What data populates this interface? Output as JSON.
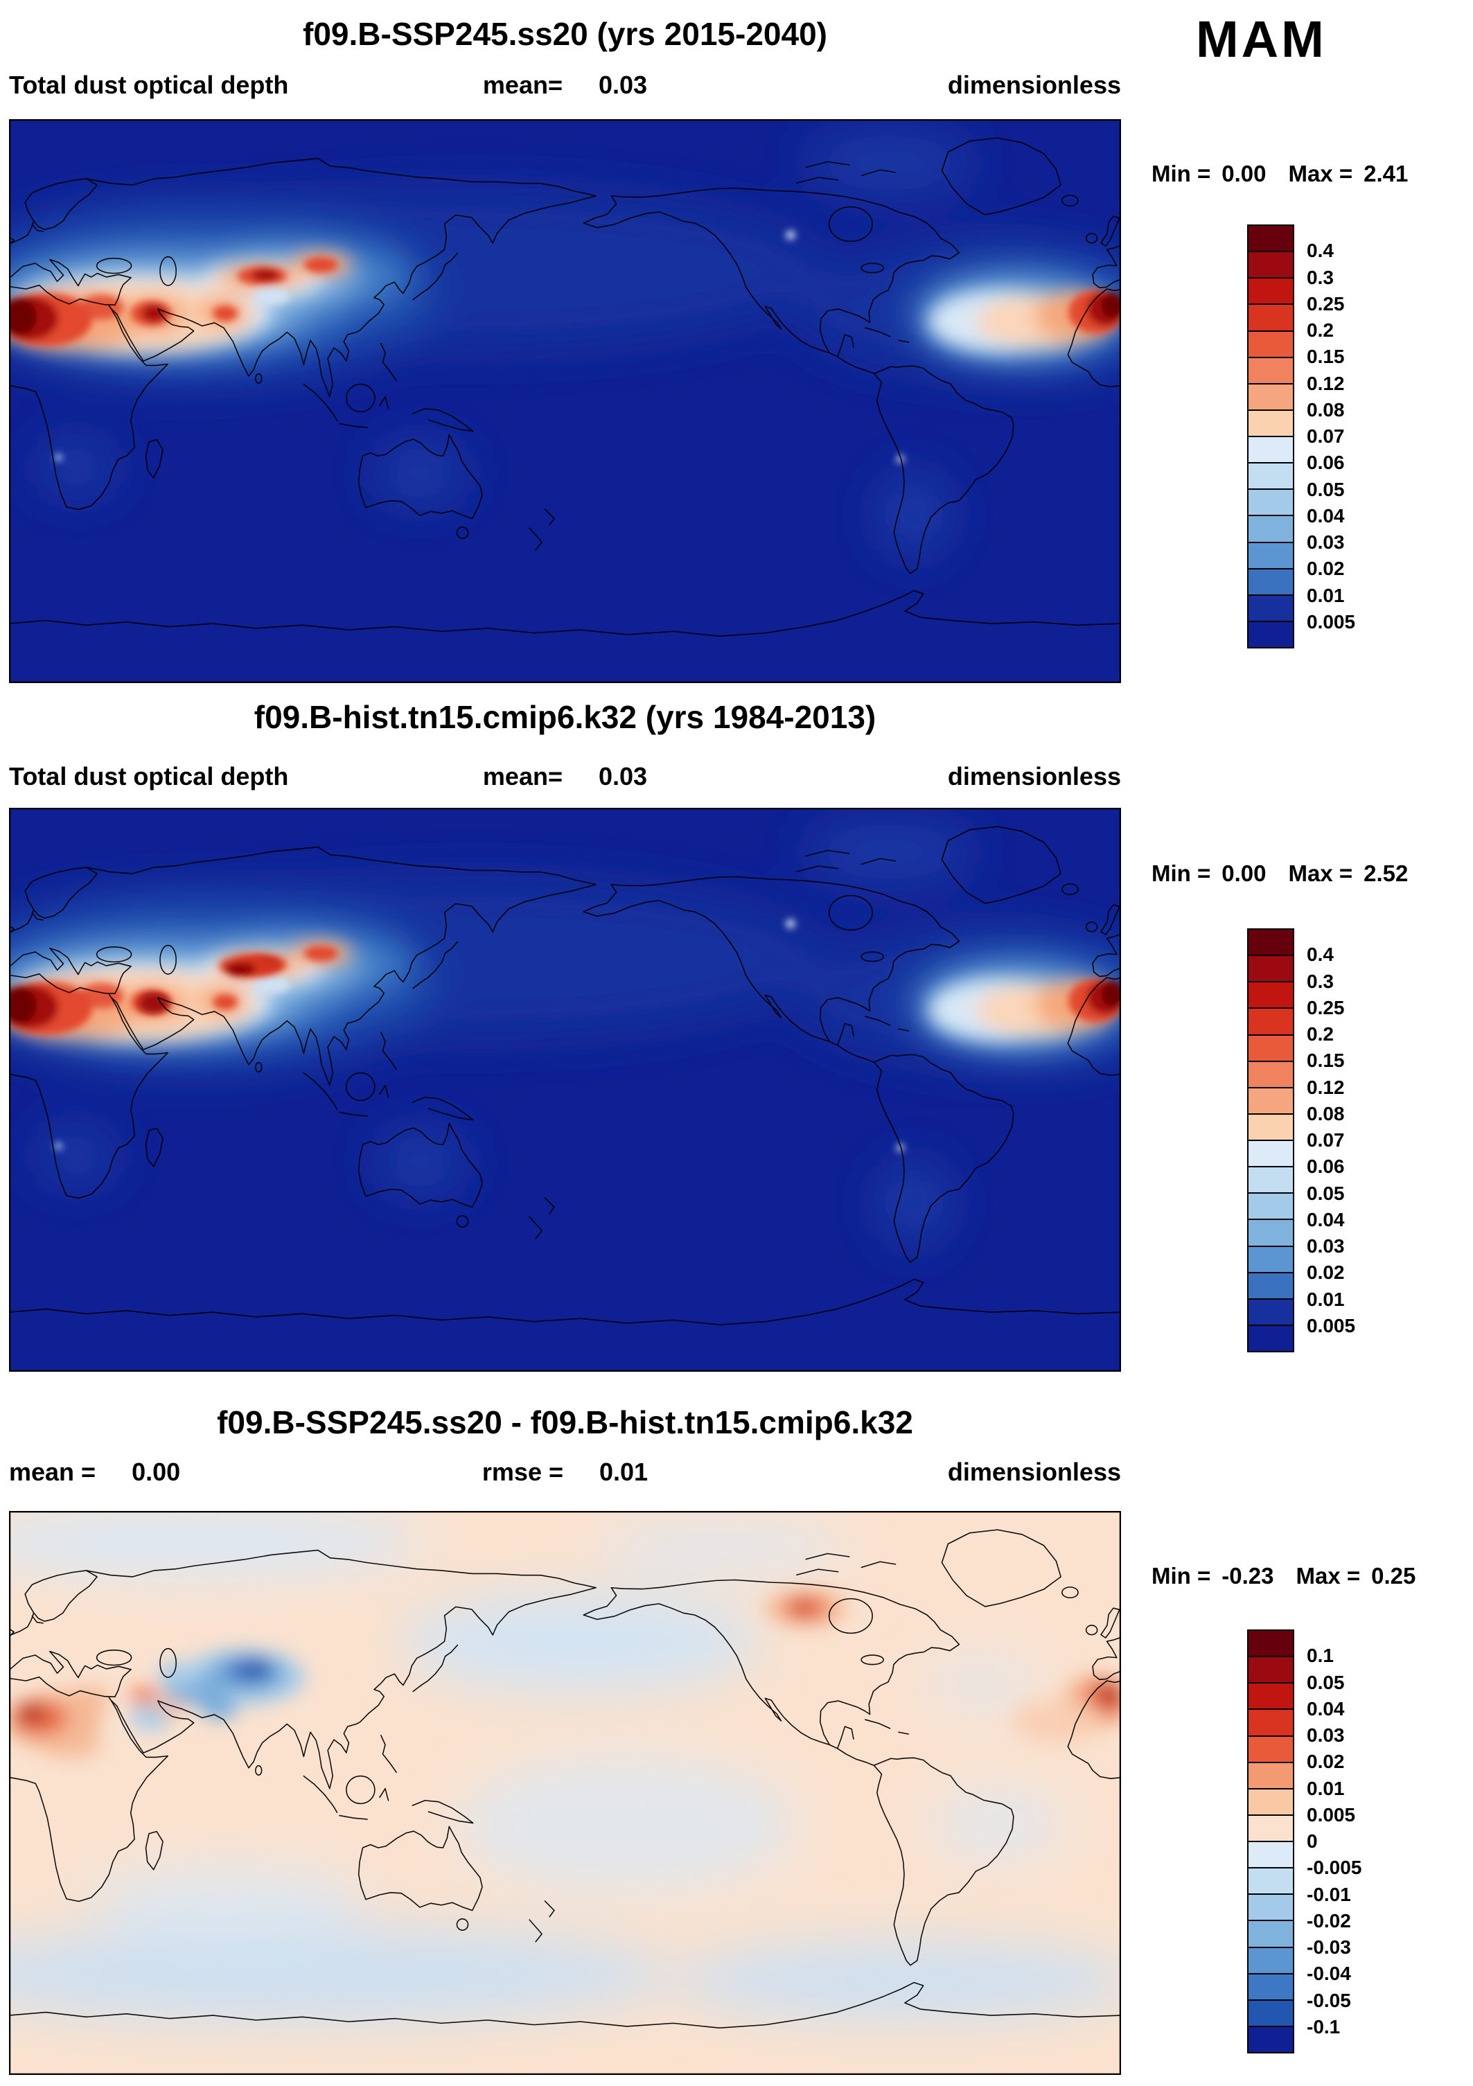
{
  "season": "MAM",
  "colors": {
    "ocean": "#0e2093",
    "diff_background": "#fae2cf",
    "coastline": "#000000"
  },
  "panels": [
    {
      "title": "f09.B-SSP245.ss20 (yrs 2015-2040)",
      "stats": {
        "left_label": "Total dust optical depth",
        "left_value": "",
        "center_label": "mean=",
        "center_value": "0.03",
        "right": "dimensionless"
      },
      "range": {
        "min_label": "Min =",
        "min_value": "0.00",
        "max_label": "Max =",
        "max_value": "2.41"
      },
      "colorbar": {
        "labels": [
          "0.4",
          "0.3",
          "0.25",
          "0.2",
          "0.15",
          "0.12",
          "0.08",
          "0.07",
          "0.06",
          "0.05",
          "0.04",
          "0.03",
          "0.02",
          "0.01",
          "0.005"
        ],
        "colors": [
          "#67000d",
          "#9b0a10",
          "#c0160f",
          "#d93420",
          "#e85a3a",
          "#f0825d",
          "#f5a67e",
          "#fbd2b0",
          "#dcebf7",
          "#c3ddf1",
          "#a3cbe9",
          "#7fb2dd",
          "#5b95d2",
          "#3a72c0",
          "#16309e",
          "#0e2093"
        ]
      }
    },
    {
      "title": "f09.B-hist.tn15.cmip6.k32 (yrs 1984-2013)",
      "stats": {
        "left_label": "Total dust optical depth",
        "left_value": "",
        "center_label": "mean=",
        "center_value": "0.03",
        "right": "dimensionless"
      },
      "range": {
        "min_label": "Min =",
        "min_value": "0.00",
        "max_label": "Max =",
        "max_value": "2.52"
      },
      "colorbar": {
        "labels": [
          "0.4",
          "0.3",
          "0.25",
          "0.2",
          "0.15",
          "0.12",
          "0.08",
          "0.07",
          "0.06",
          "0.05",
          "0.04",
          "0.03",
          "0.02",
          "0.01",
          "0.005"
        ],
        "colors": [
          "#67000d",
          "#9b0a10",
          "#c0160f",
          "#d93420",
          "#e85a3a",
          "#f0825d",
          "#f5a67e",
          "#fbd2b0",
          "#dcebf7",
          "#c3ddf1",
          "#a3cbe9",
          "#7fb2dd",
          "#5b95d2",
          "#3a72c0",
          "#16309e",
          "#0e2093"
        ]
      }
    },
    {
      "title": "f09.B-SSP245.ss20 - f09.B-hist.tn15.cmip6.k32",
      "stats": {
        "left_label": "mean =",
        "left_value": "0.00",
        "center_label": "rmse =",
        "center_value": "0.01",
        "right": "dimensionless"
      },
      "range": {
        "min_label": "Min =",
        "min_value": "-0.23",
        "max_label": "Max =",
        "max_value": "0.25"
      },
      "colorbar": {
        "labels": [
          "0.1",
          "0.05",
          "0.04",
          "0.03",
          "0.02",
          "0.01",
          "0.005",
          "0",
          "-0.005",
          "-0.01",
          "-0.02",
          "-0.03",
          "-0.04",
          "-0.05",
          "-0.1"
        ],
        "colors": [
          "#67000d",
          "#9b0a10",
          "#c0160f",
          "#d93420",
          "#e85a3a",
          "#f49a72",
          "#f9c8a4",
          "#fae2cf",
          "#dcebf7",
          "#c3ddf1",
          "#a3cbe9",
          "#7fb2dd",
          "#5b95d2",
          "#3c78c4",
          "#2257b1",
          "#0e2093"
        ]
      }
    }
  ],
  "chart_data": [
    {
      "type": "heatmap",
      "map_type": "filled-contour global latitude-longitude map, cylindrical equidistant",
      "lon_range": [
        0,
        360
      ],
      "lat_range": [
        -90,
        90
      ],
      "title": "f09.B-SSP245.ss20 (yrs 2015-2040)",
      "variable": "Total dust optical depth",
      "units": "dimensionless",
      "season": "MAM",
      "mean": 0.03,
      "min": 0.0,
      "max": 2.41,
      "contour_levels": [
        0.005,
        0.01,
        0.02,
        0.03,
        0.04,
        0.05,
        0.06,
        0.07,
        0.08,
        0.12,
        0.15,
        0.2,
        0.25,
        0.3,
        0.4
      ],
      "palette": "dark navy (lowest) through blues, near-white, oranges to dark red (highest)",
      "main_features": [
        "dust maxima (>0.4) over Sahara, Arabian Peninsula, South Asia and Taklamakan/Gobi deserts",
        "Saharan dust plume extending west over the tropical North Atlantic at the right map edge",
        "moderate-blue plume advected east from Asia across the North Pacific",
        "very low values (<0.005, navy) over most oceans and the Southern Hemisphere",
        "small local bright source spots over western Canada/Alaska and the Atacama/Altiplano"
      ]
    },
    {
      "type": "heatmap",
      "map_type": "filled-contour global latitude-longitude map, cylindrical equidistant",
      "lon_range": [
        0,
        360
      ],
      "lat_range": [
        -90,
        90
      ],
      "title": "f09.B-hist.tn15.cmip6.k32 (yrs 1984-2013)",
      "variable": "Total dust optical depth",
      "units": "dimensionless",
      "season": "MAM",
      "mean": 0.03,
      "min": 0.0,
      "max": 2.52,
      "contour_levels": [
        0.005,
        0.01,
        0.02,
        0.03,
        0.04,
        0.05,
        0.06,
        0.07,
        0.08,
        0.12,
        0.15,
        0.2,
        0.25,
        0.3,
        0.4
      ],
      "palette": "dark navy (lowest) through blues, near-white, oranges to dark red (highest)",
      "main_features": [
        "same pattern as SSP245 panel with slightly stronger Asian desert dust maxima",
        "dust maxima over Sahara, Middle East and Central/East Asian deserts",
        "Saharan plume over tropical North Atlantic"
      ]
    },
    {
      "type": "heatmap",
      "map_type": "filled-contour global difference map, cylindrical equidistant",
      "lon_range": [
        0,
        360
      ],
      "lat_range": [
        -90,
        90
      ],
      "title": "f09.B-SSP245.ss20 - f09.B-hist.tn15.cmip6.k32",
      "variable": "Total dust optical depth difference",
      "units": "dimensionless",
      "season": "MAM",
      "mean": 0.0,
      "rmse": 0.01,
      "min": -0.23,
      "max": 0.25,
      "contour_levels": [
        -0.1,
        -0.05,
        -0.04,
        -0.03,
        -0.02,
        -0.01,
        -0.005,
        0,
        0.005,
        0.01,
        0.02,
        0.03,
        0.04,
        0.05,
        0.1
      ],
      "palette": "blue negative, pale near zero, red positive",
      "main_features": [
        "strong negative differences (blue) over Central/East Asian deserts and Middle East",
        "positive differences (red) over Sahara/Sahel and tropical North Atlantic plume",
        "small positive patch over central Canada",
        "weak pale-blue negative background over much of the Pacific and Southern Ocean",
        "weak pale-peach positive background elsewhere"
      ]
    }
  ]
}
